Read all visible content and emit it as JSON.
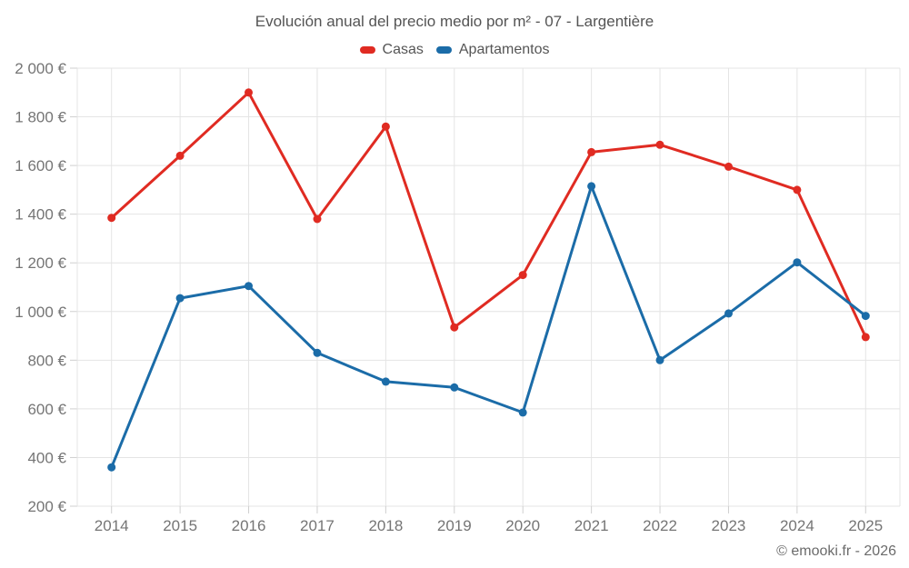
{
  "chart": {
    "footer": "© emooki.fr - 2026"
  },
  "chart_data": {
    "type": "line",
    "title": "Evolución anual del precio medio por m² - 07 - Largentière",
    "categories": [
      "2014",
      "2015",
      "2016",
      "2017",
      "2018",
      "2019",
      "2020",
      "2021",
      "2022",
      "2023",
      "2024",
      "2025"
    ],
    "series": [
      {
        "name": "Casas",
        "color": "#e02b22",
        "values": [
          1385,
          1640,
          1900,
          1380,
          1760,
          935,
          1150,
          1655,
          1685,
          1595,
          1500,
          895
        ]
      },
      {
        "name": "Apartamentos",
        "color": "#1b6ca8",
        "values": [
          360,
          1055,
          1105,
          830,
          712,
          688,
          585,
          1515,
          800,
          992,
          1202,
          982
        ]
      }
    ],
    "xlabel": "",
    "ylabel": "",
    "ylim": [
      200,
      2000
    ],
    "y_tick_step": 200,
    "y_tick_labels": [
      "200 €",
      "400 €",
      "600 €",
      "800 €",
      "1 000 €",
      "1 200 €",
      "1 400 €",
      "1 600 €",
      "1 800 €",
      "2 000 €"
    ],
    "grid": true,
    "legend_position": "top",
    "currency_suffix": "€"
  },
  "style": {
    "grid_color": "#e4e4e4",
    "tick_color": "#cfcfcf",
    "axis_text_color": "#757575",
    "title_color": "#545454",
    "legend_text_color": "#555555",
    "footer_color": "#6b6b6b",
    "background": "#ffffff"
  }
}
